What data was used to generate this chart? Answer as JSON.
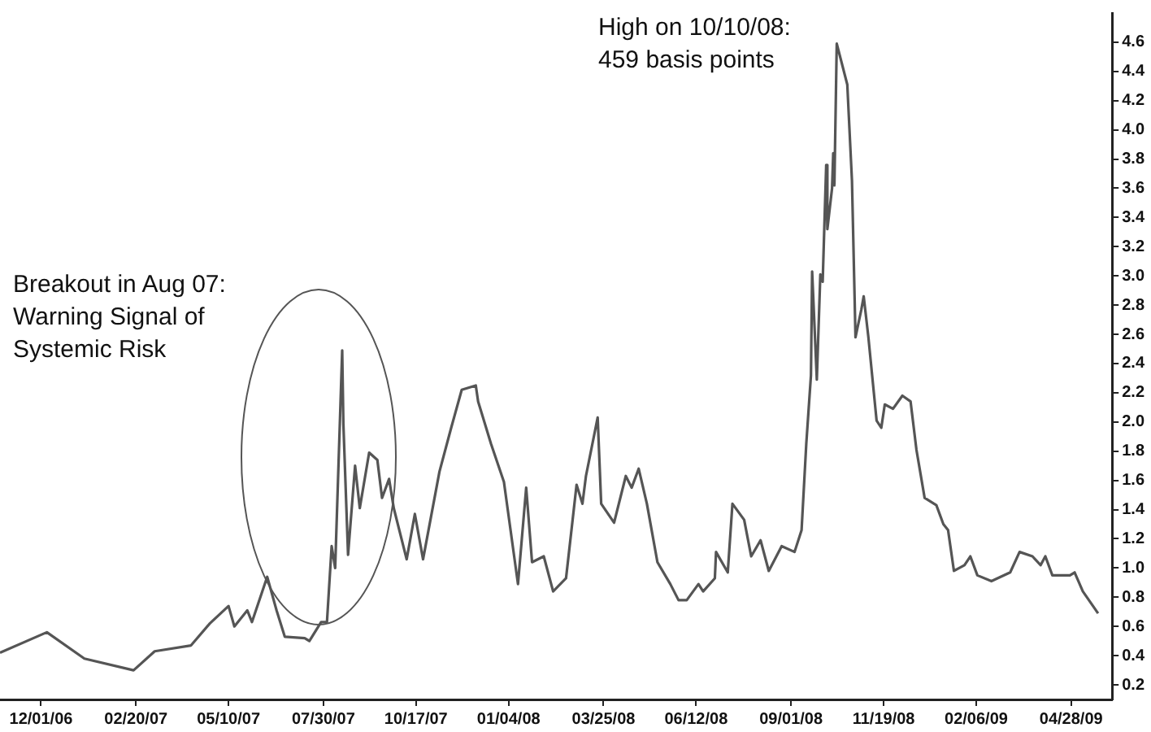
{
  "chart_data": {
    "type": "line",
    "annotations": [
      "Breakout in Aug 07:\nWarning Signal of\nSystemic Risk",
      "High on 10/10/08:\n459 basis points"
    ],
    "x": [
      "2006-10-27",
      "2006-12-06",
      "2007-01-07",
      "2007-02-18",
      "2007-03-08",
      "2007-04-08",
      "2007-04-24",
      "2007-05-10",
      "2007-05-15",
      "2007-05-26",
      "2007-05-30",
      "2007-06-12",
      "2007-06-20",
      "2007-06-27",
      "2007-07-14",
      "2007-07-18",
      "2007-07-28",
      "2007-08-02",
      "2007-08-06",
      "2007-08-09",
      "2007-08-15",
      "2007-08-16",
      "2007-08-20",
      "2007-08-26",
      "2007-08-30",
      "2007-09-07",
      "2007-09-14",
      "2007-09-18",
      "2007-09-24",
      "2007-09-28",
      "2007-10-09",
      "2007-10-16",
      "2007-10-23",
      "2007-11-06",
      "2007-11-16",
      "2007-11-25",
      "2007-12-07",
      "2007-12-09",
      "2007-12-20",
      "2007-12-31",
      "2008-01-12",
      "2008-01-19",
      "2008-01-24",
      "2008-02-03",
      "2008-02-11",
      "2008-02-22",
      "2008-03-02",
      "2008-03-07",
      "2008-03-10",
      "2008-03-20",
      "2008-03-23",
      "2008-04-03",
      "2008-04-13",
      "2008-04-18",
      "2008-04-24",
      "2008-05-01",
      "2008-05-10",
      "2008-05-21",
      "2008-05-28",
      "2008-06-04",
      "2008-06-14",
      "2008-06-18",
      "2008-06-28",
      "2008-06-29",
      "2008-07-09",
      "2008-07-13",
      "2008-07-23",
      "2008-07-29",
      "2008-08-06",
      "2008-08-13",
      "2008-08-24",
      "2008-09-04",
      "2008-09-10",
      "2008-09-14",
      "2008-09-18",
      "2008-09-19",
      "2008-09-23",
      "2008-09-26",
      "2008-09-28",
      "2008-10-01",
      "2008-10-02",
      "2008-10-06",
      "2008-10-07",
      "2008-10-08",
      "2008-10-10",
      "2008-10-19",
      "2008-10-23",
      "2008-10-26",
      "2008-10-31",
      "2008-11-02",
      "2008-11-06",
      "2008-11-13",
      "2008-11-17",
      "2008-11-20",
      "2008-11-27",
      "2008-12-05",
      "2008-12-12",
      "2008-12-17",
      "2008-12-24",
      "2009-01-03",
      "2009-01-09",
      "2009-01-13",
      "2009-01-18",
      "2009-01-27",
      "2009-02-01",
      "2009-02-07",
      "2009-02-19",
      "2009-03-07",
      "2009-03-15",
      "2009-03-26",
      "2009-04-02",
      "2009-04-06",
      "2009-04-12",
      "2009-04-27",
      "2009-05-01",
      "2009-05-08",
      "2009-05-21"
    ],
    "series": [
      {
        "color": "#555555",
        "values": [
          0.42,
          0.56,
          0.38,
          0.3,
          0.43,
          0.47,
          0.62,
          0.74,
          0.6,
          0.71,
          0.63,
          0.94,
          0.71,
          0.53,
          0.52,
          0.5,
          0.63,
          0.63,
          1.15,
          1.0,
          2.49,
          1.99,
          1.09,
          1.7,
          1.41,
          1.79,
          1.74,
          1.48,
          1.61,
          1.41,
          1.06,
          1.37,
          1.06,
          1.66,
          1.96,
          2.22,
          2.25,
          2.14,
          1.85,
          1.59,
          0.89,
          1.55,
          1.04,
          1.08,
          0.84,
          0.93,
          1.57,
          1.44,
          1.63,
          2.03,
          1.44,
          1.31,
          1.63,
          1.55,
          1.68,
          1.44,
          1.04,
          0.89,
          0.78,
          0.78,
          0.89,
          0.84,
          0.93,
          1.11,
          0.97,
          1.44,
          1.33,
          1.08,
          1.19,
          0.98,
          1.15,
          1.11,
          1.26,
          1.85,
          2.32,
          3.03,
          2.29,
          3.01,
          2.96,
          3.76,
          3.32,
          3.6,
          3.84,
          3.62,
          4.59,
          4.31,
          3.65,
          2.58,
          2.77,
          2.86,
          2.58,
          2.01,
          1.96,
          2.12,
          2.09,
          2.18,
          2.14,
          1.81,
          1.48,
          1.43,
          1.3,
          1.26,
          0.98,
          1.02,
          1.08,
          0.95,
          0.91,
          0.97,
          1.11,
          1.08,
          1.02,
          1.08,
          0.95,
          0.95,
          0.97,
          0.84,
          0.69
        ]
      }
    ],
    "xlim": [
      "2006-10-27",
      "2009-06-02"
    ],
    "xticks": [
      {
        "value": "2006-12-01",
        "label": "12/01/06"
      },
      {
        "value": "2007-02-20",
        "label": "02/20/07"
      },
      {
        "value": "2007-05-10",
        "label": "05/10/07"
      },
      {
        "value": "2007-07-30",
        "label": "07/30/07"
      },
      {
        "value": "2007-10-17",
        "label": "10/17/07"
      },
      {
        "value": "2008-01-04",
        "label": "01/04/08"
      },
      {
        "value": "2008-03-25",
        "label": "03/25/08"
      },
      {
        "value": "2008-06-12",
        "label": "06/12/08"
      },
      {
        "value": "2008-09-01",
        "label": "09/01/08"
      },
      {
        "value": "2008-11-19",
        "label": "11/19/08"
      },
      {
        "value": "2009-02-06",
        "label": "02/06/09"
      },
      {
        "value": "2009-04-28",
        "label": "04/28/09"
      }
    ],
    "ylim": [
      0.1,
      4.8
    ],
    "yticks": [
      0.2,
      0.4,
      0.6,
      0.8,
      {
        "value": 1,
        "label": "1.0"
      },
      1.2,
      1.4,
      1.6,
      1.8,
      {
        "value": 2,
        "label": "2.0"
      },
      2.2,
      2.4,
      2.6,
      2.8,
      {
        "value": 3,
        "label": "3.0"
      },
      3.2,
      3.4,
      3.6,
      3.8,
      {
        "value": 4,
        "label": "4.0"
      },
      4.2,
      4.4,
      4.6
    ],
    "grid": false,
    "legend": false,
    "marker": "none",
    "line_style": "solid"
  }
}
